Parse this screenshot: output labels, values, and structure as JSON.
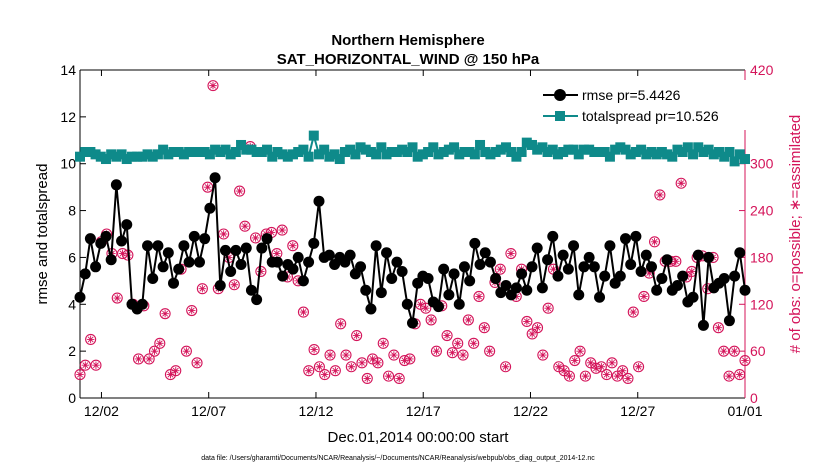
{
  "chart_data": {
    "type": "line",
    "title": "Northern Hemisphere",
    "subtitle": "SAT_HORIZONTAL_WIND @ 150 hPa",
    "xlabel": "Dec.01,2014 00:00:00 start",
    "ylabel": "rmse and totalspread",
    "y2label": "# of obs: o=possible; ∗=assimilated",
    "footnote": "data file: /Users/gharamti/Documents/NCAR/Reanalysis/~/Documents/NCAR/Reanalysis/webpub/obs_diag_output_2014-12.nc",
    "xlim": [
      0,
      124
    ],
    "ylim": [
      0,
      14
    ],
    "y2lim": [
      0,
      420
    ],
    "x_ticks": [
      {
        "x": 4,
        "label": "12/02"
      },
      {
        "x": 24,
        "label": "12/07"
      },
      {
        "x": 44,
        "label": "12/12"
      },
      {
        "x": 64,
        "label": "12/17"
      },
      {
        "x": 84,
        "label": "12/22"
      },
      {
        "x": 104,
        "label": "12/27"
      },
      {
        "x": 124,
        "label": "01/01"
      }
    ],
    "y_ticks": [
      0,
      2,
      4,
      6,
      8,
      10,
      12,
      14
    ],
    "y2_ticks": [
      0,
      60,
      120,
      180,
      240,
      300,
      360,
      420
    ],
    "legend": {
      "placement": "top-right"
    },
    "colors": {
      "rmse": "#000000",
      "spread": "#0e8a8a",
      "obs": "#d4145a"
    },
    "series": [
      {
        "name": "rmse pr=5.4426",
        "axis": "left",
        "values": [
          4.3,
          5.3,
          6.8,
          5.6,
          6.6,
          6.9,
          5.9,
          9.1,
          6.7,
          7.4,
          4.0,
          3.8,
          4.0,
          6.5,
          5.1,
          6.5,
          5.6,
          6.2,
          4.9,
          5.5,
          6.5,
          5.8,
          6.9,
          5.8,
          6.8,
          8.1,
          9.4,
          4.8,
          6.3,
          5.4,
          6.3,
          5.7,
          6.4,
          4.6,
          4.2,
          6.4,
          6.8,
          5.8,
          5.8,
          5.2,
          5.7,
          5.5,
          6.0,
          5.0,
          5.8,
          6.6,
          8.4,
          6.0,
          6.1,
          5.7,
          6.0,
          5.8,
          6.1,
          5.3,
          5.6,
          4.6,
          3.8,
          6.5,
          4.5,
          6.2,
          5.1,
          5.8,
          5.4,
          4.0,
          3.2,
          4.9,
          5.2,
          5.1,
          4.1,
          3.9,
          5.5,
          4.4,
          5.3,
          4.0,
          5.6,
          5.0,
          6.6,
          5.7,
          6.2,
          5.8,
          5.1,
          4.5,
          4.8,
          4.4,
          4.7,
          5.3,
          4.6,
          5.6,
          6.4,
          4.7,
          5.9,
          6.9,
          5.2,
          6.1,
          5.5,
          6.5,
          4.4,
          5.6,
          6.0,
          5.6,
          4.3,
          5.2,
          6.5,
          4.9,
          5.2,
          6.8,
          5.7,
          6.9,
          5.4,
          6.1,
          5.6,
          4.6,
          5.1,
          5.9,
          4.6,
          4.8,
          5.2,
          4.1,
          4.3,
          6.1,
          3.1,
          6.0,
          4.7,
          4.9,
          5.1,
          3.3,
          5.2,
          6.2,
          4.6
        ]
      },
      {
        "name": "totalspread pr=10.526",
        "axis": "left",
        "values": [
          10.3,
          10.5,
          10.5,
          10.4,
          10.3,
          10.2,
          10.4,
          10.3,
          10.4,
          10.2,
          10.3,
          10.3,
          10.3,
          10.4,
          10.3,
          10.4,
          10.6,
          10.4,
          10.5,
          10.5,
          10.4,
          10.5,
          10.5,
          10.5,
          10.5,
          10.4,
          10.6,
          10.5,
          10.6,
          10.4,
          10.5,
          10.8,
          10.6,
          10.6,
          10.5,
          10.5,
          10.6,
          10.3,
          10.5,
          10.4,
          10.3,
          10.4,
          10.5,
          10.6,
          10.3,
          11.2,
          10.4,
          10.6,
          10.3,
          10.4,
          10.2,
          10.5,
          10.6,
          10.4,
          10.7,
          10.6,
          10.5,
          10.4,
          10.7,
          10.4,
          10.5,
          10.5,
          10.6,
          10.5,
          10.7,
          10.3,
          10.4,
          10.5,
          10.7,
          10.4,
          10.5,
          10.6,
          10.7,
          10.4,
          10.5,
          10.5,
          10.4,
          10.8,
          10.5,
          10.4,
          10.5,
          10.6,
          10.7,
          10.5,
          10.3,
          10.5,
          10.9,
          10.8,
          10.6,
          10.7,
          10.5,
          10.6,
          10.4,
          10.5,
          10.6,
          10.6,
          10.4,
          10.6,
          10.6,
          10.5,
          10.5,
          10.5,
          10.3,
          10.6,
          10.7,
          10.6,
          10.4,
          10.5,
          10.6,
          10.4,
          10.5,
          10.4,
          10.5,
          10.4,
          10.3,
          10.6,
          10.5,
          10.7,
          10.4,
          10.7,
          10.5,
          10.6,
          10.4,
          10.5,
          10.3,
          10.5,
          10.1,
          10.4,
          10.2
        ]
      },
      {
        "name": "obs possible / assimilated",
        "axis": "right",
        "values": [
          30,
          42,
          75,
          42,
          200,
          210,
          185,
          128,
          185,
          183,
          120,
          50,
          118,
          50,
          60,
          70,
          108,
          30,
          35,
          165,
          60,
          112,
          45,
          140,
          270,
          400,
          140,
          210,
          180,
          145,
          265,
          220,
          322,
          205,
          162,
          210,
          212,
          185,
          215,
          155,
          195,
          150,
          110,
          35,
          62,
          40,
          30,
          55,
          35,
          95,
          55,
          40,
          80,
          45,
          25,
          50,
          45,
          70,
          28,
          55,
          25,
          48,
          50,
          95,
          120,
          115,
          100,
          60,
          118,
          80,
          58,
          70,
          55,
          100,
          70,
          130,
          90,
          60,
          148,
          165,
          40,
          185,
          130,
          165,
          98,
          82,
          90,
          55,
          115,
          165,
          40,
          35,
          28,
          48,
          60,
          28,
          45,
          38,
          40,
          30,
          45,
          28,
          35,
          25,
          110,
          40,
          130,
          160,
          200,
          260,
          175,
          175,
          175,
          275,
          155,
          162,
          180,
          182,
          140,
          180,
          90,
          60,
          28,
          60,
          30,
          48
        ]
      }
    ]
  },
  "legend_items": [
    {
      "label": "rmse pr=5.4426"
    },
    {
      "label": "totalspread pr=10.526"
    }
  ]
}
